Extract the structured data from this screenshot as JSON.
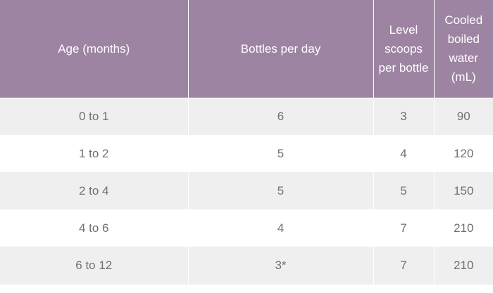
{
  "table": {
    "headers": {
      "age": "Age (months)",
      "bottles": "Bottles per day",
      "scoops": "Level scoops per bottle",
      "water": "Cooled boiled water (mL)"
    },
    "rows": [
      {
        "age": "0 to 1",
        "bottles": "6",
        "scoops": "3",
        "water": "90"
      },
      {
        "age": "1 to 2",
        "bottles": "5",
        "scoops": "4",
        "water": "120"
      },
      {
        "age": "2 to 4",
        "bottles": "5",
        "scoops": "5",
        "water": "150"
      },
      {
        "age": "4 to 6",
        "bottles": "4",
        "scoops": "7",
        "water": "210"
      },
      {
        "age": "6 to 12",
        "bottles": "3*",
        "scoops": "7",
        "water": "210"
      }
    ]
  },
  "colors": {
    "header_bg": "#9d84a2",
    "header_text": "#ffffff",
    "row_alt_bg": "#efefef",
    "cell_text": "#707070"
  }
}
